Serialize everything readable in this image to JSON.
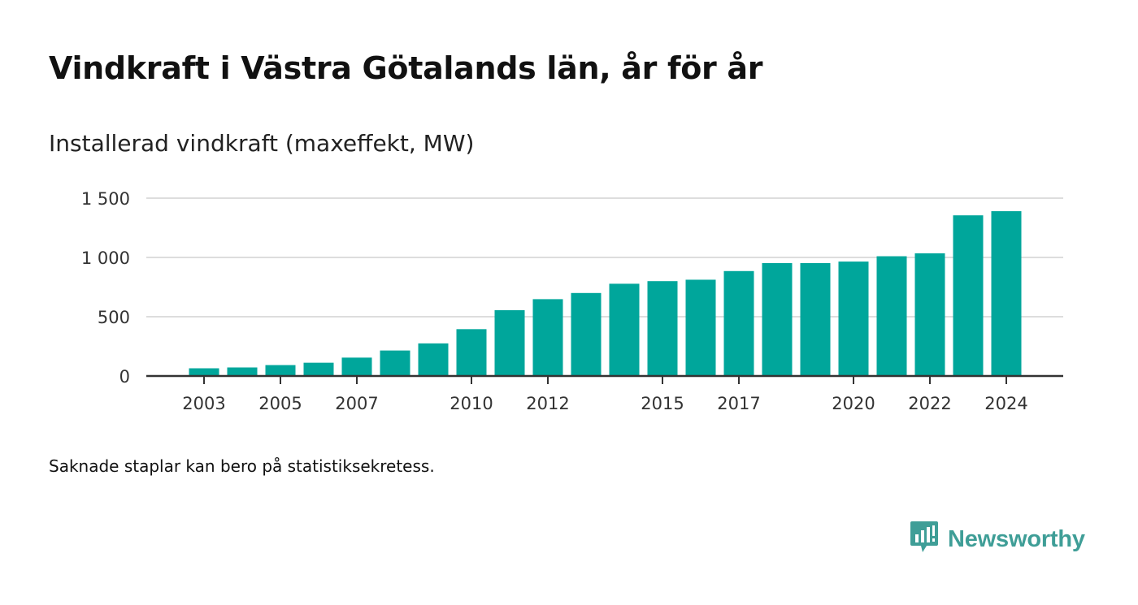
{
  "chart_data": {
    "type": "bar",
    "title": "Vindkraft i Västra Götalands län, år för år",
    "subtitle": "Installerad vindkraft (maxeffekt, MW)",
    "xlabel": "",
    "ylabel": "",
    "x": [
      2003,
      2004,
      2005,
      2006,
      2007,
      2008,
      2009,
      2010,
      2011,
      2012,
      2013,
      2014,
      2015,
      2016,
      2017,
      2018,
      2019,
      2020,
      2021,
      2022,
      2023,
      2024
    ],
    "values": [
      65,
      72,
      92,
      112,
      155,
      215,
      275,
      395,
      555,
      648,
      700,
      778,
      800,
      812,
      885,
      952,
      952,
      965,
      1010,
      1035,
      1355,
      1390
    ],
    "x_tick_labels": [
      "2003",
      "2005",
      "2007",
      "2010",
      "2012",
      "2015",
      "2017",
      "2020",
      "2022",
      "2024"
    ],
    "y_ticks": [
      0,
      500,
      1000,
      1500
    ],
    "y_tick_labels": [
      "0",
      "500",
      "1 000",
      "1 500"
    ],
    "ylim": [
      0,
      1500
    ],
    "grid": true,
    "color": "#00a69b"
  },
  "footer": {
    "note": "Saknade staplar kan bero på statistiksekretess.",
    "brand": "Newsworthy",
    "brand_icon": "newsworthy-logo-icon",
    "brand_color": "#3f9e97"
  }
}
